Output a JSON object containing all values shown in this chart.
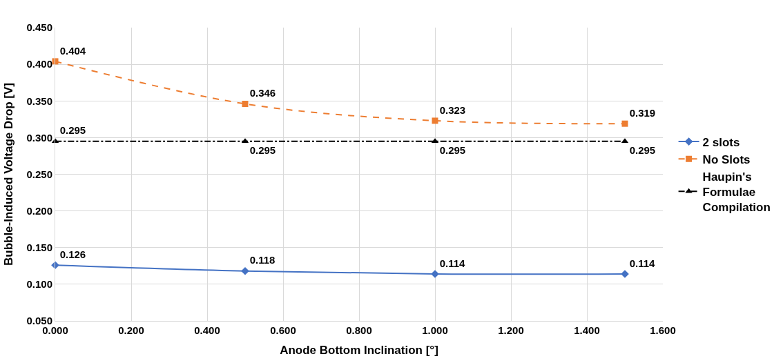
{
  "chart_data": {
    "type": "line",
    "xlabel": "Anode Bottom Inclination [°]",
    "ylabel": "Bubble-Induced Voltage Drop [V]",
    "x": [
      0,
      0.5,
      1.0,
      1.5
    ],
    "series": [
      {
        "name": "2 slots",
        "color": "#4472c4",
        "values": [
          0.126,
          0.118,
          0.114,
          0.114
        ],
        "marker": "diamond",
        "line_style": "solid"
      },
      {
        "name": "No Slots",
        "color": "#ed7d31",
        "values": [
          0.404,
          0.346,
          0.323,
          0.319
        ],
        "marker": "square",
        "line_style": "dashed"
      },
      {
        "name": "Haupin's Formulae Compilation",
        "color": "#000000",
        "values": [
          0.295,
          0.295,
          0.295,
          0.295
        ],
        "marker": "triangle",
        "line_style": "dashdot"
      }
    ],
    "xlim": [
      0,
      1.6
    ],
    "xticks": [
      {
        "value": 0,
        "label": "0.000"
      },
      {
        "value": 0.2,
        "label": "0.200"
      },
      {
        "value": 0.4,
        "label": "0.400"
      },
      {
        "value": 0.6,
        "label": "0.600"
      },
      {
        "value": 0.8,
        "label": "0.800"
      },
      {
        "value": 1.0,
        "label": "1.000"
      },
      {
        "value": 1.2,
        "label": "1.200"
      },
      {
        "value": 1.4,
        "label": "1.400"
      },
      {
        "value": 1.6,
        "label": "1.600"
      }
    ],
    "ylim": [
      0.05,
      0.45
    ],
    "yticks": [
      {
        "value": 0.05,
        "label": "0.050"
      },
      {
        "value": 0.1,
        "label": "0.100"
      },
      {
        "value": 0.15,
        "label": "0.150"
      },
      {
        "value": 0.2,
        "label": "0.200"
      },
      {
        "value": 0.25,
        "label": "0.250"
      },
      {
        "value": 0.3,
        "label": "0.300"
      },
      {
        "value": 0.35,
        "label": "0.350"
      },
      {
        "value": 0.4,
        "label": "0.400"
      },
      {
        "value": 0.45,
        "label": "0.450"
      }
    ],
    "grid": true,
    "legend": "right",
    "data_labels": true
  }
}
